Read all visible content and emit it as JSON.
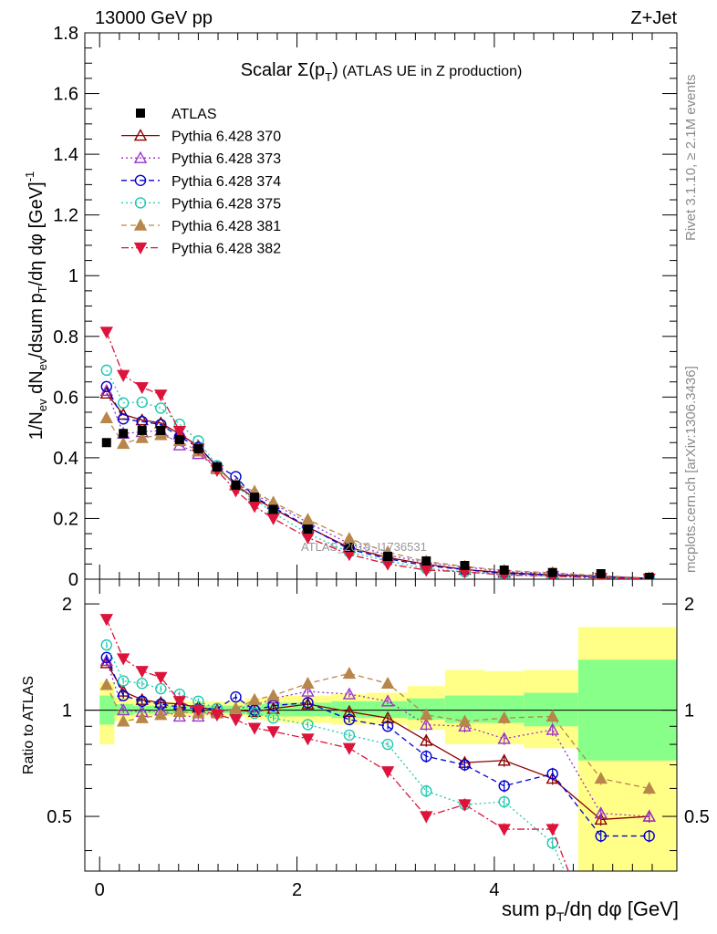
{
  "header": {
    "energy_label": "13000 GeV pp",
    "process_label": "Z+Jet"
  },
  "side_text": {
    "rivet": "Rivet 3.1.10, ≥ 2.1M events",
    "mcplots": "mcplots.cern.ch [arXiv:1306.3436]"
  },
  "watermark": "ATLAS_2019_I1736531",
  "chart_data": {
    "type": "scatter",
    "title": "Scalar Σ(p_T) (ATLAS UE in Z production)",
    "title_main": "Scalar ",
    "title_sym": "Σ(p",
    "title_sub": "T",
    "title_close": ")",
    "title_rest": " (ATLAS UE in Z production)",
    "xlabel": "sum p_T/dη dφ [GeV]",
    "xlabel_parts": {
      "a": "sum p",
      "sub": "T",
      "b": "/dη dφ [GeV]"
    },
    "ylabel": "1/N_ev dN_ev/dsum p_T/dη dφ [GeV]^-1",
    "ylabel_parts": {
      "a": "1/N",
      "sub1": "ev",
      "b": " dN",
      "sub2": "ev",
      "c": "/dsum p",
      "sub3": "T",
      "d": "/dη dφ  [GeV]",
      "sup": "-1"
    },
    "ratio_ylabel": "Ratio to ATLAS",
    "xlim": [
      -0.15,
      5.85
    ],
    "ylim": [
      0,
      1.8
    ],
    "ratio_ylim": [
      0.35,
      2.35
    ],
    "x_ticks": [
      "0",
      "2",
      "4"
    ],
    "y_ticks": [
      "0",
      "0.2",
      "0.4",
      "0.6",
      "0.8",
      "1",
      "1.2",
      "1.4",
      "1.6",
      "1.8"
    ],
    "ratio_ticks": [
      "0.5",
      "1",
      "2"
    ],
    "legend_position": "top-left",
    "x": [
      0.07,
      0.24,
      0.43,
      0.62,
      0.81,
      1.0,
      1.19,
      1.38,
      1.57,
      1.76,
      2.11,
      2.53,
      2.92,
      3.31,
      3.7,
      4.1,
      4.59,
      5.08,
      5.57
    ],
    "reference": {
      "name": "ATLAS",
      "values": [
        0.45,
        0.48,
        0.49,
        0.49,
        0.46,
        0.43,
        0.37,
        0.31,
        0.27,
        0.23,
        0.165,
        0.105,
        0.075,
        0.06,
        0.045,
        0.03,
        0.022,
        0.018,
        0.006
      ],
      "band_edges": [
        0,
        0.15,
        0.34,
        0.53,
        0.72,
        0.91,
        1.1,
        1.29,
        1.48,
        1.67,
        1.85,
        2.35,
        2.71,
        3.12,
        3.5,
        3.9,
        4.3,
        4.85,
        5.3,
        5.85
      ],
      "band_stat": [
        [
          0.91,
          1.1
        ],
        [
          0.97,
          1.04
        ],
        [
          0.98,
          1.03
        ],
        [
          0.98,
          1.03
        ],
        [
          0.98,
          1.03
        ],
        [
          0.98,
          1.03
        ],
        [
          0.98,
          1.03
        ],
        [
          0.98,
          1.03
        ],
        [
          0.97,
          1.04
        ],
        [
          0.96,
          1.05
        ],
        [
          0.96,
          1.05
        ],
        [
          0.95,
          1.06
        ],
        [
          0.95,
          1.06
        ],
        [
          0.94,
          1.08
        ],
        [
          0.92,
          1.1
        ],
        [
          0.92,
          1.1
        ],
        [
          0.9,
          1.12
        ],
        [
          0.72,
          1.39
        ],
        [
          0.72,
          1.39
        ]
      ],
      "band_tot": [
        [
          0.8,
          1.2
        ],
        [
          0.93,
          1.09
        ],
        [
          0.95,
          1.07
        ],
        [
          0.96,
          1.06
        ],
        [
          0.96,
          1.06
        ],
        [
          0.96,
          1.06
        ],
        [
          0.96,
          1.06
        ],
        [
          0.96,
          1.06
        ],
        [
          0.94,
          1.08
        ],
        [
          0.93,
          1.09
        ],
        [
          0.92,
          1.1
        ],
        [
          0.91,
          1.11
        ],
        [
          0.91,
          1.12
        ],
        [
          0.88,
          1.17
        ],
        [
          0.8,
          1.3
        ],
        [
          0.8,
          1.29
        ],
        [
          0.78,
          1.3
        ],
        [
          0.35,
          1.72
        ],
        [
          0.35,
          1.72
        ]
      ]
    },
    "series": [
      {
        "name": "Pythia 6.428 370",
        "color": "#8b0000",
        "marker": "triangle-open",
        "dash": "",
        "err": 0.02,
        "ratio": [
          1.36,
          1.13,
          1.07,
          1.05,
          1.04,
          1.02,
          1.0,
          1.0,
          0.99,
          1.01,
          1.04,
          0.99,
          0.95,
          0.82,
          0.71,
          0.72,
          0.64,
          0.49,
          0.5
        ]
      },
      {
        "name": "Pythia 6.428 373",
        "color": "#9932cc",
        "marker": "triangle-open",
        "dash": "2,3",
        "err": 0.02,
        "ratio": [
          1.38,
          1.0,
          0.99,
          1.0,
          0.96,
          0.96,
          0.99,
          1.01,
          1.03,
          1.08,
          1.13,
          1.11,
          1.06,
          0.91,
          0.9,
          0.83,
          0.88,
          0.51,
          0.5
        ]
      },
      {
        "name": "Pythia 6.428 374",
        "color": "#0000cd",
        "marker": "circle-open",
        "dash": "6,4",
        "err": 0.02,
        "ratio": [
          1.41,
          1.1,
          1.06,
          1.04,
          1.02,
          1.01,
          1.01,
          1.09,
          1.0,
          1.03,
          1.05,
          0.94,
          0.9,
          0.74,
          0.7,
          0.61,
          0.66,
          0.44,
          0.44
        ]
      },
      {
        "name": "Pythia 6.428 375",
        "color": "#20c8b0",
        "marker": "circle-open",
        "dash": "2,3",
        "err": 0.02,
        "ratio": [
          1.53,
          1.21,
          1.19,
          1.15,
          1.11,
          1.06,
          1.01,
          0.98,
          0.98,
          0.95,
          0.91,
          0.85,
          0.8,
          0.59,
          0.54,
          0.55,
          0.42,
          0.2,
          0.2
        ]
      },
      {
        "name": "Pythia 6.428 381",
        "color": "#b8864b",
        "marker": "triangle-filled",
        "dash": "6,4",
        "err": 0.02,
        "ratio": [
          1.18,
          0.93,
          0.95,
          0.97,
          0.99,
          0.98,
          0.98,
          1.01,
          1.07,
          1.1,
          1.19,
          1.27,
          1.19,
          0.97,
          0.93,
          0.95,
          0.96,
          0.64,
          0.6
        ]
      },
      {
        "name": "Pythia 6.428 382",
        "color": "#dc143c",
        "marker": "triangle-down-filled",
        "dash": "8,3,2,3",
        "err": 0.02,
        "ratio": [
          1.81,
          1.4,
          1.29,
          1.24,
          1.06,
          1.0,
          0.97,
          0.94,
          0.89,
          0.87,
          0.83,
          0.78,
          0.67,
          0.5,
          0.54,
          0.46,
          0.46,
          0.2,
          0.2
        ]
      }
    ]
  }
}
